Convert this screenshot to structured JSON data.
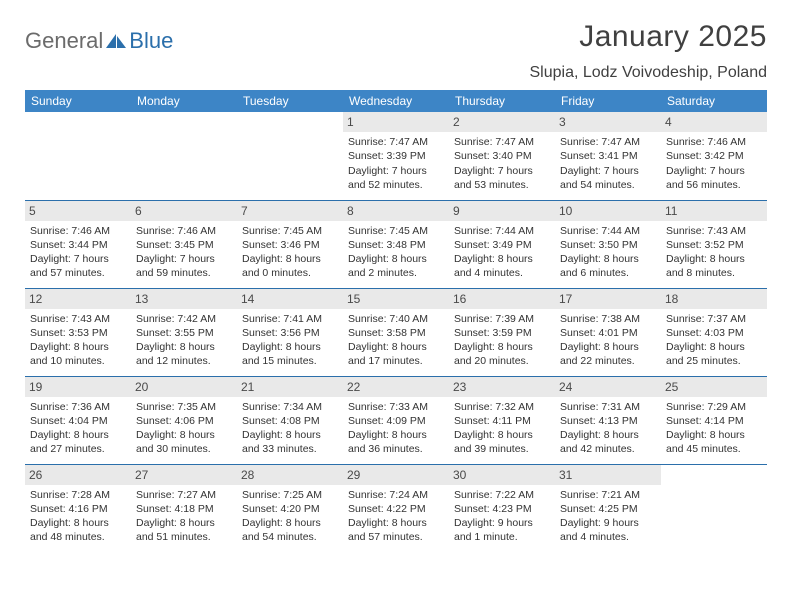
{
  "logo": {
    "text1": "General",
    "text2": "Blue"
  },
  "title": "January 2025",
  "location": "Slupia, Lodz Voivodeship, Poland",
  "colors": {
    "header_bg": "#3d85c6",
    "header_text": "#ffffff",
    "row_border": "#2b6fab",
    "daynum_bg": "#e9e9e9",
    "body_text": "#333333",
    "logo_gray": "#6b6b6b",
    "logo_blue": "#2b6fab",
    "background": "#ffffff"
  },
  "typography": {
    "title_size_pt": 22,
    "location_size_pt": 12,
    "weekday_size_pt": 9,
    "cell_size_pt": 8
  },
  "weekdays": [
    "Sunday",
    "Monday",
    "Tuesday",
    "Wednesday",
    "Thursday",
    "Friday",
    "Saturday"
  ],
  "weeks": [
    [
      null,
      null,
      null,
      {
        "n": "1",
        "sunrise": "7:47 AM",
        "sunset": "3:39 PM",
        "dl": "7 hours and 52 minutes."
      },
      {
        "n": "2",
        "sunrise": "7:47 AM",
        "sunset": "3:40 PM",
        "dl": "7 hours and 53 minutes."
      },
      {
        "n": "3",
        "sunrise": "7:47 AM",
        "sunset": "3:41 PM",
        "dl": "7 hours and 54 minutes."
      },
      {
        "n": "4",
        "sunrise": "7:46 AM",
        "sunset": "3:42 PM",
        "dl": "7 hours and 56 minutes."
      }
    ],
    [
      {
        "n": "5",
        "sunrise": "7:46 AM",
        "sunset": "3:44 PM",
        "dl": "7 hours and 57 minutes."
      },
      {
        "n": "6",
        "sunrise": "7:46 AM",
        "sunset": "3:45 PM",
        "dl": "7 hours and 59 minutes."
      },
      {
        "n": "7",
        "sunrise": "7:45 AM",
        "sunset": "3:46 PM",
        "dl": "8 hours and 0 minutes."
      },
      {
        "n": "8",
        "sunrise": "7:45 AM",
        "sunset": "3:48 PM",
        "dl": "8 hours and 2 minutes."
      },
      {
        "n": "9",
        "sunrise": "7:44 AM",
        "sunset": "3:49 PM",
        "dl": "8 hours and 4 minutes."
      },
      {
        "n": "10",
        "sunrise": "7:44 AM",
        "sunset": "3:50 PM",
        "dl": "8 hours and 6 minutes."
      },
      {
        "n": "11",
        "sunrise": "7:43 AM",
        "sunset": "3:52 PM",
        "dl": "8 hours and 8 minutes."
      }
    ],
    [
      {
        "n": "12",
        "sunrise": "7:43 AM",
        "sunset": "3:53 PM",
        "dl": "8 hours and 10 minutes."
      },
      {
        "n": "13",
        "sunrise": "7:42 AM",
        "sunset": "3:55 PM",
        "dl": "8 hours and 12 minutes."
      },
      {
        "n": "14",
        "sunrise": "7:41 AM",
        "sunset": "3:56 PM",
        "dl": "8 hours and 15 minutes."
      },
      {
        "n": "15",
        "sunrise": "7:40 AM",
        "sunset": "3:58 PM",
        "dl": "8 hours and 17 minutes."
      },
      {
        "n": "16",
        "sunrise": "7:39 AM",
        "sunset": "3:59 PM",
        "dl": "8 hours and 20 minutes."
      },
      {
        "n": "17",
        "sunrise": "7:38 AM",
        "sunset": "4:01 PM",
        "dl": "8 hours and 22 minutes."
      },
      {
        "n": "18",
        "sunrise": "7:37 AM",
        "sunset": "4:03 PM",
        "dl": "8 hours and 25 minutes."
      }
    ],
    [
      {
        "n": "19",
        "sunrise": "7:36 AM",
        "sunset": "4:04 PM",
        "dl": "8 hours and 27 minutes."
      },
      {
        "n": "20",
        "sunrise": "7:35 AM",
        "sunset": "4:06 PM",
        "dl": "8 hours and 30 minutes."
      },
      {
        "n": "21",
        "sunrise": "7:34 AM",
        "sunset": "4:08 PM",
        "dl": "8 hours and 33 minutes."
      },
      {
        "n": "22",
        "sunrise": "7:33 AM",
        "sunset": "4:09 PM",
        "dl": "8 hours and 36 minutes."
      },
      {
        "n": "23",
        "sunrise": "7:32 AM",
        "sunset": "4:11 PM",
        "dl": "8 hours and 39 minutes."
      },
      {
        "n": "24",
        "sunrise": "7:31 AM",
        "sunset": "4:13 PM",
        "dl": "8 hours and 42 minutes."
      },
      {
        "n": "25",
        "sunrise": "7:29 AM",
        "sunset": "4:14 PM",
        "dl": "8 hours and 45 minutes."
      }
    ],
    [
      {
        "n": "26",
        "sunrise": "7:28 AM",
        "sunset": "4:16 PM",
        "dl": "8 hours and 48 minutes."
      },
      {
        "n": "27",
        "sunrise": "7:27 AM",
        "sunset": "4:18 PM",
        "dl": "8 hours and 51 minutes."
      },
      {
        "n": "28",
        "sunrise": "7:25 AM",
        "sunset": "4:20 PM",
        "dl": "8 hours and 54 minutes."
      },
      {
        "n": "29",
        "sunrise": "7:24 AM",
        "sunset": "4:22 PM",
        "dl": "8 hours and 57 minutes."
      },
      {
        "n": "30",
        "sunrise": "7:22 AM",
        "sunset": "4:23 PM",
        "dl": "9 hours and 1 minute."
      },
      {
        "n": "31",
        "sunrise": "7:21 AM",
        "sunset": "4:25 PM",
        "dl": "9 hours and 4 minutes."
      },
      null
    ]
  ],
  "labels": {
    "sunrise": "Sunrise:",
    "sunset": "Sunset:",
    "daylight": "Daylight:"
  }
}
